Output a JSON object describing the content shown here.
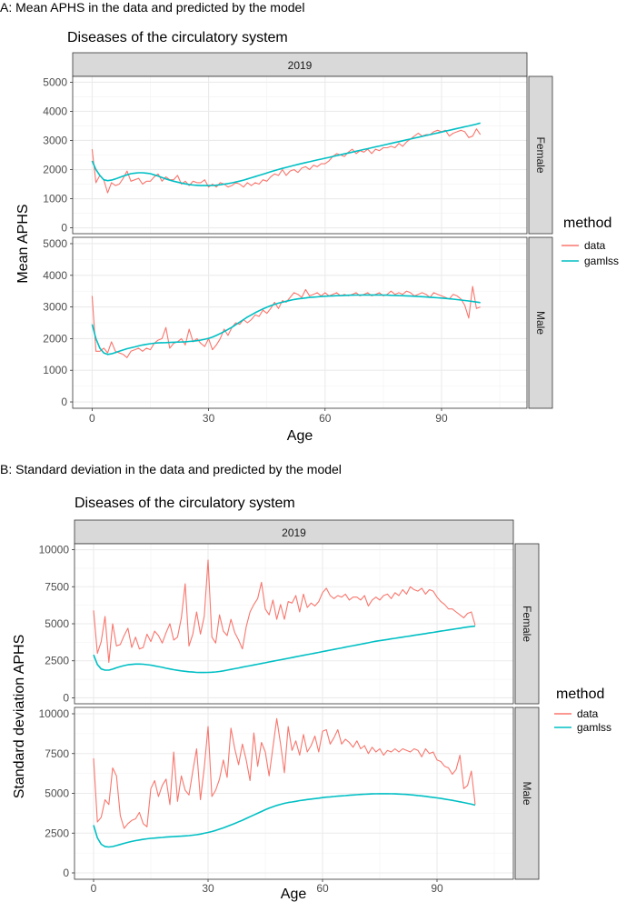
{
  "panels": [
    {
      "label": "A: Mean APHS in the data and predicted by the model",
      "chart_data": {
        "type": "line",
        "title": "Diseases of the circulatory system",
        "strip": "2019",
        "facets": [
          "Female",
          "Male"
        ],
        "xlabel": "Age",
        "ylabel": "Mean APHS",
        "xlim": [
          -5,
          112
        ],
        "ylim": [
          -200,
          5200
        ],
        "x_ticks": [
          0,
          30,
          60,
          90
        ],
        "y_ticks": [
          0,
          1000,
          2000,
          3000,
          4000,
          5000
        ],
        "grid": true,
        "legend_title": "method",
        "legend_position": "right",
        "series_names": [
          "data",
          "gamlss"
        ],
        "colors": {
          "data": "#F8766D",
          "gamlss": "#00BFC4"
        },
        "data": {
          "Female": {
            "data": [
              2700,
              1550,
              1800,
              1650,
              1200,
              1550,
              1450,
              1500,
              1700,
              1950,
              1600,
              1650,
              1700,
              1500,
              1600,
              1600,
              1750,
              1850,
              1600,
              1750,
              1650,
              1650,
              1800,
              1500,
              1600,
              1450,
              1600,
              1550,
              1550,
              1650,
              1400,
              1500,
              1400,
              1550,
              1500,
              1400,
              1450,
              1550,
              1500,
              1400,
              1550,
              1450,
              1550,
              1500,
              1650,
              1600,
              1750,
              1850,
              1800,
              2000,
              1800,
              1950,
              2000,
              1900,
              2050,
              2100,
              2000,
              2150,
              2100,
              2200,
              2200,
              2300,
              2450,
              2550,
              2500,
              2450,
              2600,
              2700,
              2550,
              2650,
              2600,
              2700,
              2550,
              2700,
              2650,
              2750,
              2750,
              2800,
              2750,
              2900,
              2800,
              2950,
              3050,
              3150,
              3250,
              3150,
              3200,
              3200,
              3300,
              3350,
              3300,
              3350,
              3150,
              3250,
              3300,
              3350,
              3300,
              3100,
              3150,
              3400,
              3200
            ],
            "gamlss": [
              2300,
              2000,
              1800,
              1650,
              1620,
              1640,
              1680,
              1730,
              1780,
              1820,
              1860,
              1880,
              1890,
              1890,
              1880,
              1860,
              1820,
              1780,
              1730,
              1680,
              1640,
              1600,
              1570,
              1540,
              1510,
              1490,
              1470,
              1460,
              1450,
              1450,
              1450,
              1455,
              1465,
              1480,
              1500,
              1520,
              1545,
              1575,
              1605,
              1640,
              1680,
              1720,
              1760,
              1800,
              1840,
              1885,
              1925,
              1965,
              2005,
              2040,
              2075,
              2110,
              2145,
              2180,
              2210,
              2240,
              2270,
              2300,
              2330,
              2360,
              2390,
              2420,
              2450,
              2480,
              2510,
              2540,
              2570,
              2600,
              2630,
              2660,
              2690,
              2720,
              2750,
              2780,
              2810,
              2840,
              2870,
              2900,
              2930,
              2960,
              2990,
              3020,
              3050,
              3080,
              3110,
              3140,
              3170,
              3200,
              3230,
              3260,
              3290,
              3320,
              3350,
              3380,
              3410,
              3440,
              3470,
              3500,
              3530,
              3560,
              3600
            ]
          },
          "Male": {
            "data": [
              3350,
              1600,
              1600,
              1700,
              1550,
              1900,
              1600,
              1550,
              1500,
              1400,
              1600,
              1650,
              1700,
              1600,
              1700,
              1650,
              1850,
              1950,
              2000,
              2350,
              1700,
              1850,
              1900,
              2000,
              1800,
              2300,
              1900,
              2000,
              1850,
              1750,
              2000,
              1650,
              1800,
              2000,
              2300,
              2100,
              2350,
              2500,
              2450,
              2600,
              2500,
              2600,
              2750,
              2700,
              2900,
              2800,
              2950,
              3150,
              2950,
              3200,
              3150,
              3300,
              3450,
              3400,
              3300,
              3550,
              3350,
              3400,
              3450,
              3350,
              3450,
              3350,
              3400,
              3450,
              3350,
              3400,
              3350,
              3400,
              3450,
              3350,
              3400,
              3450,
              3350,
              3400,
              3450,
              3350,
              3400,
              3500,
              3400,
              3450,
              3400,
              3500,
              3450,
              3350,
              3400,
              3450,
              3400,
              3300,
              3450,
              3400,
              3350,
              3300,
              3250,
              3400,
              3350,
              3250,
              3050,
              2650,
              3650,
              2950,
              3000
            ],
            "gamlss": [
              2450,
              2000,
              1700,
              1550,
              1500,
              1520,
              1560,
              1600,
              1640,
              1680,
              1710,
              1740,
              1770,
              1800,
              1820,
              1840,
              1855,
              1865,
              1870,
              1875,
              1880,
              1885,
              1890,
              1895,
              1900,
              1910,
              1920,
              1935,
              1955,
              1980,
              2010,
              2050,
              2100,
              2160,
              2220,
              2290,
              2360,
              2440,
              2520,
              2600,
              2680,
              2750,
              2820,
              2880,
              2940,
              2990,
              3040,
              3080,
              3120,
              3150,
              3180,
              3210,
              3235,
              3255,
              3270,
              3285,
              3300,
              3310,
              3320,
              3330,
              3340,
              3345,
              3350,
              3355,
              3360,
              3365,
              3370,
              3372,
              3375,
              3377,
              3380,
              3380,
              3380,
              3380,
              3378,
              3375,
              3372,
              3368,
              3364,
              3360,
              3355,
              3350,
              3344,
              3338,
              3331,
              3324,
              3316,
              3308,
              3299,
              3290,
              3280,
              3270,
              3258,
              3246,
              3233,
              3219,
              3204,
              3188,
              3172,
              3155,
              3138
            ]
          }
        }
      }
    },
    {
      "label": "B: Standard deviation in the data and predicted by the model",
      "chart_data": {
        "type": "line",
        "title": "Diseases of the circulatory system",
        "strip": "2019",
        "facets": [
          "Female",
          "Male"
        ],
        "xlabel": "Age",
        "ylabel": "Standard deviation APHS",
        "xlim": [
          -5,
          110
        ],
        "ylim": [
          -400,
          10400
        ],
        "x_ticks": [
          0,
          30,
          60,
          90
        ],
        "y_ticks": [
          0,
          2500,
          5000,
          7500,
          10000
        ],
        "grid": true,
        "legend_title": "method",
        "legend_position": "right",
        "series_names": [
          "data",
          "gamlss"
        ],
        "colors": {
          "data": "#F8766D",
          "gamlss": "#00BFC4"
        },
        "data": {
          "Female": {
            "data": [
              5900,
              3000,
              3800,
              5500,
              2400,
              5000,
              3500,
              3600,
              4200,
              4700,
              3400,
              4100,
              3300,
              3400,
              4300,
              3800,
              4500,
              4200,
              3700,
              4400,
              5000,
              3900,
              4100,
              5400,
              7700,
              3500,
              4300,
              5800,
              4300,
              5500,
              9300,
              4100,
              3700,
              5600,
              4500,
              4200,
              5300,
              4400,
              3900,
              3300,
              4800,
              5800,
              6300,
              6700,
              7800,
              6000,
              5600,
              6600,
              5300,
              6300,
              5300,
              6500,
              6400,
              6900,
              5800,
              7000,
              6100,
              6400,
              6200,
              6500,
              7100,
              7400,
              6900,
              6700,
              6900,
              6800,
              7000,
              6600,
              6800,
              6800,
              6600,
              6900,
              6200,
              6600,
              6800,
              6600,
              6900,
              7000,
              6700,
              7100,
              6900,
              7300,
              7000,
              7500,
              7300,
              7200,
              7400,
              7000,
              7300,
              7200,
              6800,
              6500,
              6300,
              6000,
              6000,
              5800,
              5600,
              5400,
              5700,
              5800,
              4900
            ],
            "gamlss": [
              2900,
              2250,
              1950,
              1870,
              1870,
              1940,
              2030,
              2110,
              2180,
              2230,
              2260,
              2280,
              2280,
              2270,
              2240,
              2210,
              2160,
              2110,
              2060,
              2000,
              1950,
              1900,
              1860,
              1820,
              1790,
              1760,
              1740,
              1720,
              1710,
              1710,
              1720,
              1730,
              1750,
              1780,
              1820,
              1870,
              1920,
              1970,
              2020,
              2070,
              2120,
              2170,
              2220,
              2270,
              2320,
              2370,
              2420,
              2470,
              2520,
              2570,
              2620,
              2670,
              2720,
              2770,
              2820,
              2870,
              2920,
              2970,
              3020,
              3070,
              3120,
              3170,
              3220,
              3270,
              3320,
              3370,
              3420,
              3470,
              3520,
              3570,
              3620,
              3670,
              3720,
              3770,
              3820,
              3860,
              3900,
              3940,
              3980,
              4020,
              4060,
              4100,
              4140,
              4180,
              4220,
              4260,
              4300,
              4340,
              4380,
              4420,
              4460,
              4500,
              4540,
              4580,
              4620,
              4660,
              4700,
              4740,
              4780,
              4810,
              4840
            ]
          },
          "Male": {
            "data": [
              7200,
              3200,
              3500,
              4600,
              4300,
              6600,
              6100,
              3600,
              2800,
              3100,
              3300,
              3400,
              3800,
              3100,
              2900,
              5300,
              5800,
              4800,
              5500,
              5900,
              4300,
              7600,
              4500,
              6100,
              5200,
              4900,
              6400,
              7800,
              4600,
              6600,
              9200,
              4800,
              5200,
              5900,
              7100,
              6000,
              9100,
              7800,
              6800,
              8100,
              7100,
              5800,
              8800,
              6700,
              8200,
              7600,
              6100,
              7900,
              9700,
              8100,
              6300,
              9200,
              7700,
              8300,
              7400,
              8700,
              7600,
              8000,
              8600,
              7600,
              8900,
              9000,
              8100,
              8500,
              9000,
              8100,
              8400,
              8200,
              7900,
              8300,
              7800,
              8000,
              7500,
              7900,
              7600,
              7800,
              7400,
              7700,
              7600,
              7800,
              7600,
              7800,
              7700,
              7600,
              7800,
              7700,
              7300,
              7800,
              7500,
              7600,
              7100,
              7000,
              6700,
              6600,
              6200,
              6500,
              7400,
              5300,
              5500,
              6400,
              4300
            ],
            "gamlss": [
              3000,
              2200,
              1800,
              1650,
              1630,
              1660,
              1720,
              1790,
              1860,
              1920,
              1980,
              2030,
              2070,
              2110,
              2140,
              2170,
              2190,
              2210,
              2230,
              2250,
              2270,
              2280,
              2295,
              2310,
              2325,
              2345,
              2370,
              2400,
              2440,
              2490,
              2540,
              2600,
              2670,
              2750,
              2830,
              2920,
              3010,
              3110,
              3210,
              3310,
              3420,
              3530,
              3640,
              3750,
              3860,
              3970,
              4070,
              4160,
              4240,
              4310,
              4370,
              4420,
              4460,
              4500,
              4540,
              4580,
              4610,
              4640,
              4670,
              4700,
              4730,
              4760,
              4780,
              4800,
              4820,
              4840,
              4860,
              4880,
              4900,
              4915,
              4930,
              4945,
              4955,
              4965,
              4970,
              4975,
              4975,
              4975,
              4970,
              4965,
              4955,
              4945,
              4930,
              4910,
              4890,
              4865,
              4840,
              4810,
              4780,
              4750,
              4715,
              4680,
              4640,
              4600,
              4560,
              4515,
              4470,
              4420,
              4370,
              4320,
              4260
            ]
          }
        }
      }
    }
  ]
}
